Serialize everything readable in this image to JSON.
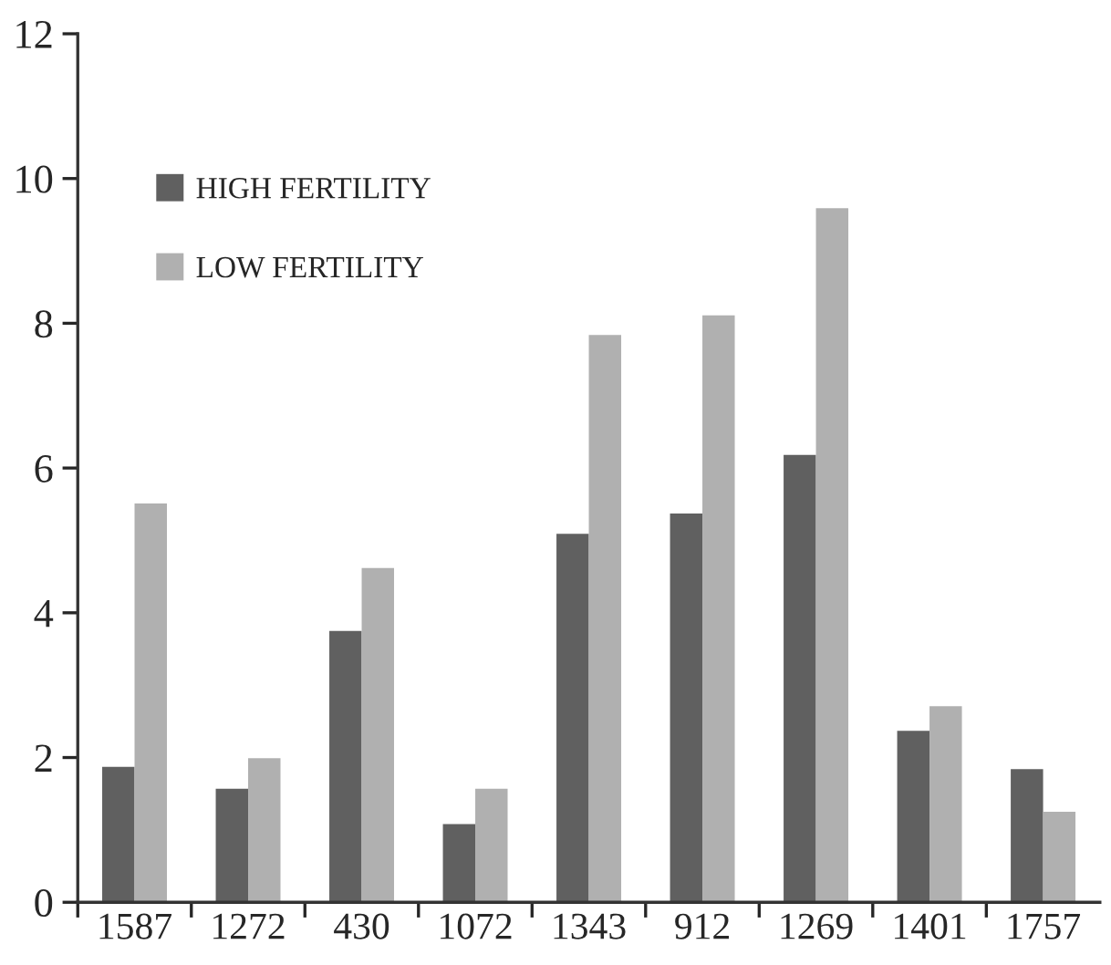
{
  "chart_data": {
    "type": "bar",
    "categories": [
      "1587",
      "1272",
      "430",
      "1072",
      "1343",
      "912",
      "1269",
      "1401",
      "1757"
    ],
    "series": [
      {
        "name": "HIGH FERTILITY",
        "color": "#606060",
        "values": [
          1.87,
          1.57,
          3.75,
          1.08,
          5.09,
          5.37,
          6.18,
          2.37,
          1.84
        ]
      },
      {
        "name": "LOW FERTILITY",
        "color": "#b0b0b0",
        "values": [
          5.51,
          1.99,
          4.62,
          1.57,
          7.84,
          8.11,
          9.59,
          2.71,
          1.25
        ]
      }
    ],
    "ylim": [
      0,
      12
    ],
    "yticks": [
      0,
      2,
      4,
      6,
      8,
      10,
      12
    ],
    "grid": false,
    "legend": "top left"
  }
}
